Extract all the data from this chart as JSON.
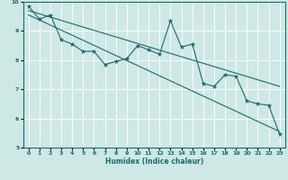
{
  "xlabel": "Humidex (Indice chaleur)",
  "ylabel": "",
  "bg_color": "#cde8e5",
  "plot_bg_color": "#cde8e5",
  "line_color": "#1a6b6b",
  "grid_color": "#ffffff",
  "xlim": [
    -0.5,
    23.5
  ],
  "ylim": [
    5,
    10
  ],
  "xticks": [
    0,
    1,
    2,
    3,
    4,
    5,
    6,
    7,
    8,
    9,
    10,
    11,
    12,
    13,
    14,
    15,
    16,
    17,
    18,
    19,
    20,
    21,
    22,
    23
  ],
  "yticks": [
    5,
    6,
    7,
    8,
    9,
    10
  ],
  "line1_x": [
    0,
    1,
    2,
    3,
    4,
    5,
    6,
    7,
    8,
    9,
    10,
    11,
    12,
    13,
    14,
    15,
    16,
    17,
    18,
    19,
    20,
    21,
    22,
    23
  ],
  "line1_y": [
    9.85,
    9.4,
    9.55,
    8.7,
    8.55,
    8.3,
    8.3,
    7.85,
    7.95,
    8.05,
    8.5,
    8.35,
    8.2,
    9.35,
    8.45,
    8.55,
    7.2,
    7.1,
    7.5,
    7.45,
    6.6,
    6.5,
    6.45,
    5.45
  ],
  "line2_x": [
    0,
    23
  ],
  "line2_y": [
    9.7,
    7.1
  ],
  "line3_x": [
    0,
    23
  ],
  "line3_y": [
    9.55,
    5.55
  ]
}
